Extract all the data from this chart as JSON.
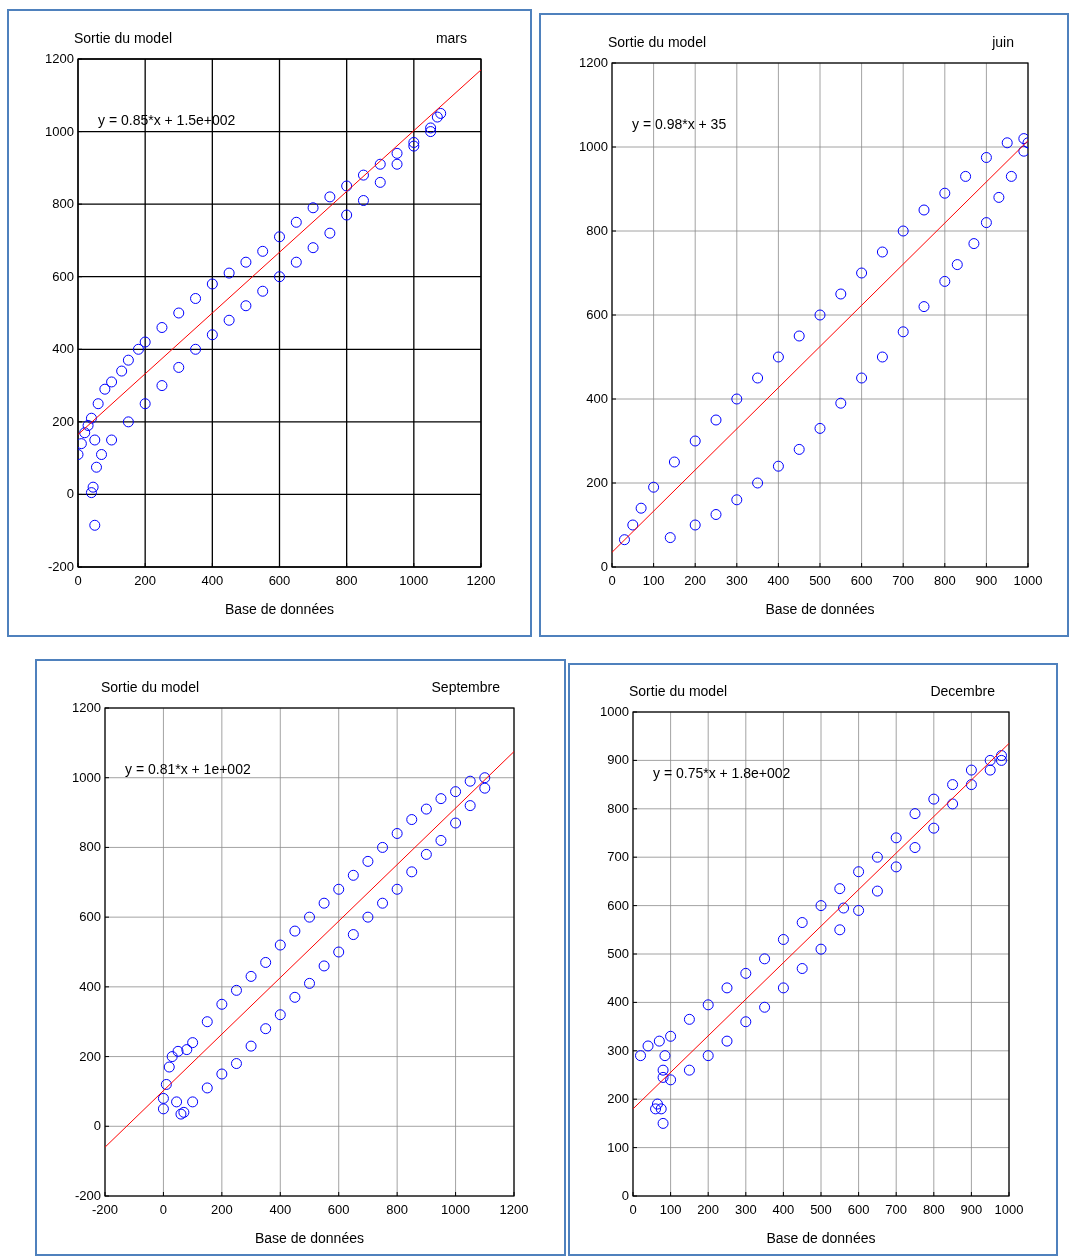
{
  "chart_data": [
    {
      "type": "scatter",
      "title": "mars",
      "ylabel": "Sortie du model",
      "xlabel": "Base de données",
      "annotations": [
        "y = 0.85*x + 1.5e+002"
      ],
      "xlim": [
        0,
        1200
      ],
      "ylim": [
        -200,
        1200
      ],
      "xticks": [
        0,
        200,
        400,
        600,
        800,
        1000,
        1200
      ],
      "yticks": [
        -200,
        0,
        200,
        400,
        600,
        800,
        1000,
        1200
      ],
      "grid": true,
      "marker": "circle",
      "series": [
        {
          "color": "#0000ff",
          "x": [
            0,
            10,
            20,
            30,
            40,
            60,
            80,
            100,
            130,
            150,
            180,
            200,
            250,
            300,
            350,
            400,
            450,
            500,
            550,
            600,
            650,
            700,
            750,
            800,
            850,
            900,
            950,
            1000,
            1050,
            1080,
            1070,
            1050,
            1000,
            950,
            900,
            850,
            800,
            750,
            700,
            650,
            600,
            550,
            500,
            450,
            400,
            350,
            300,
            250,
            200,
            150,
            100,
            70,
            55,
            45,
            40,
            50,
            50
          ],
          "values": [
            110,
            140,
            170,
            190,
            210,
            250,
            290,
            310,
            340,
            370,
            400,
            420,
            460,
            500,
            540,
            580,
            610,
            640,
            670,
            710,
            750,
            790,
            820,
            850,
            880,
            910,
            940,
            970,
            1010,
            1050,
            1040,
            1000,
            960,
            910,
            860,
            810,
            770,
            720,
            680,
            640,
            600,
            560,
            520,
            480,
            440,
            400,
            350,
            300,
            250,
            200,
            150,
            110,
            75,
            20,
            5,
            150,
            -85
          ]
        },
        {
          "type": "line",
          "color": "#ff0000",
          "marker": "none",
          "x": [
            0,
            1200
          ],
          "values": [
            165,
            1170
          ]
        }
      ]
    },
    {
      "type": "scatter",
      "title": "juin",
      "ylabel": "Sortie du model",
      "xlabel": "Base de données",
      "annotations": [
        "y = 0.98*x + 35"
      ],
      "xlim": [
        0,
        1000
      ],
      "ylim": [
        0,
        1200
      ],
      "xticks": [
        0,
        100,
        200,
        300,
        400,
        500,
        600,
        700,
        800,
        900,
        1000
      ],
      "yticks": [
        0,
        200,
        400,
        600,
        800,
        1000,
        1200
      ],
      "grid": true,
      "marker": "circle",
      "series": [
        {
          "color": "#0000ff",
          "x": [
            30,
            50,
            70,
            100,
            150,
            200,
            250,
            300,
            350,
            400,
            450,
            500,
            550,
            600,
            650,
            700,
            750,
            800,
            850,
            900,
            950,
            990,
            1000,
            990,
            960,
            930,
            900,
            870,
            830,
            800,
            750,
            700,
            650,
            600,
            550,
            500,
            450,
            400,
            350,
            300,
            250,
            200,
            140
          ],
          "values": [
            65,
            100,
            140,
            190,
            250,
            300,
            350,
            400,
            450,
            500,
            550,
            600,
            650,
            700,
            750,
            800,
            850,
            890,
            930,
            975,
            1010,
            1020,
            1010,
            990,
            930,
            880,
            820,
            770,
            720,
            680,
            620,
            560,
            500,
            450,
            390,
            330,
            280,
            240,
            200,
            160,
            125,
            100,
            70
          ]
        },
        {
          "type": "line",
          "color": "#ff0000",
          "marker": "none",
          "x": [
            0,
            1000
          ],
          "values": [
            35,
            1015
          ]
        }
      ]
    },
    {
      "type": "scatter",
      "title": "Septembre",
      "ylabel": "Sortie du model",
      "xlabel": "Base de données",
      "annotations": [
        "y = 0.81*x + 1e+002"
      ],
      "xlim": [
        -200,
        1200
      ],
      "ylim": [
        -200,
        1200
      ],
      "xticks": [
        -200,
        0,
        200,
        400,
        600,
        800,
        1000,
        1200
      ],
      "yticks": [
        -200,
        0,
        200,
        400,
        600,
        800,
        1000,
        1200
      ],
      "grid": true,
      "marker": "circle",
      "series": [
        {
          "color": "#0000ff",
          "x": [
            0,
            0,
            10,
            20,
            30,
            50,
            80,
            100,
            150,
            200,
            250,
            300,
            350,
            400,
            450,
            500,
            550,
            600,
            650,
            700,
            750,
            800,
            850,
            900,
            950,
            1000,
            1050,
            1100,
            1100,
            1050,
            1000,
            950,
            900,
            850,
            800,
            750,
            700,
            650,
            600,
            550,
            500,
            450,
            400,
            350,
            300,
            250,
            200,
            150,
            100,
            70,
            60,
            45
          ],
          "values": [
            50,
            80,
            120,
            170,
            200,
            215,
            220,
            240,
            300,
            350,
            390,
            430,
            470,
            520,
            560,
            600,
            640,
            680,
            720,
            760,
            800,
            840,
            880,
            910,
            940,
            960,
            990,
            1000,
            970,
            920,
            870,
            820,
            780,
            730,
            680,
            640,
            600,
            550,
            500,
            460,
            410,
            370,
            320,
            280,
            230,
            180,
            150,
            110,
            70,
            40,
            35,
            70
          ]
        },
        {
          "type": "line",
          "color": "#ff0000",
          "marker": "none",
          "x": [
            -200,
            1200
          ],
          "values": [
            -60,
            1075
          ]
        }
      ]
    },
    {
      "type": "scatter",
      "title": "Decembre",
      "ylabel": "Sortie du model",
      "xlabel": "Base de données",
      "annotations": [
        "y = 0.75*x + 1.8e+002"
      ],
      "xlim": [
        0,
        1000
      ],
      "ylim": [
        0,
        1000
      ],
      "xticks": [
        0,
        100,
        200,
        300,
        400,
        500,
        600,
        700,
        800,
        900,
        1000
      ],
      "yticks": [
        0,
        100,
        200,
        300,
        400,
        500,
        600,
        700,
        800,
        900,
        1000
      ],
      "grid": true,
      "marker": "circle",
      "series": [
        {
          "color": "#0000ff",
          "x": [
            20,
            40,
            70,
            100,
            150,
            200,
            250,
            300,
            350,
            400,
            450,
            500,
            550,
            600,
            650,
            700,
            750,
            800,
            850,
            900,
            950,
            980,
            980,
            950,
            900,
            850,
            800,
            750,
            700,
            650,
            600,
            550,
            500,
            450,
            400,
            350,
            300,
            250,
            200,
            150,
            100,
            80,
            60,
            65,
            75,
            80,
            80,
            85,
            560
          ],
          "values": [
            290,
            310,
            320,
            330,
            365,
            395,
            430,
            460,
            490,
            530,
            565,
            600,
            635,
            670,
            700,
            740,
            790,
            820,
            850,
            880,
            900,
            910,
            900,
            880,
            850,
            810,
            760,
            720,
            680,
            630,
            590,
            550,
            510,
            470,
            430,
            390,
            360,
            320,
            290,
            260,
            240,
            245,
            180,
            190,
            180,
            150,
            260,
            290,
            595
          ]
        },
        {
          "type": "line",
          "color": "#ff0000",
          "marker": "none",
          "x": [
            0,
            1000
          ],
          "values": [
            180,
            935
          ]
        }
      ]
    }
  ]
}
